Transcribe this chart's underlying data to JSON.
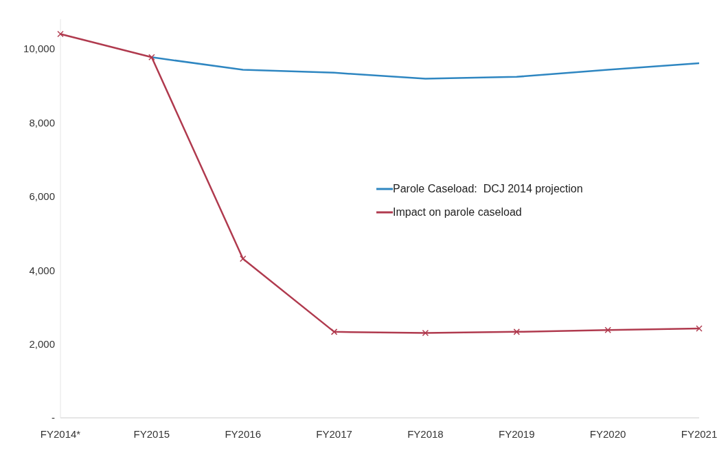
{
  "chart_data": {
    "type": "line",
    "categories": [
      "FY2014*",
      "FY2015",
      "FY2016",
      "FY2017",
      "FY2018",
      "FY2019",
      "FY2020",
      "FY2021"
    ],
    "series": [
      {
        "name": "Parole Caseload:  DCJ 2014 projection",
        "color": "#2e86c1",
        "marker": "none",
        "values": [
          null,
          9770,
          9430,
          9350,
          9190,
          9240,
          9430,
          9610
        ]
      },
      {
        "name": "Impact on parole caseload",
        "color": "#b03a4e",
        "marker": "cross",
        "values": [
          10400,
          9770,
          4310,
          2330,
          2300,
          2330,
          2380,
          2420
        ]
      }
    ],
    "ylim": [
      0,
      10800
    ],
    "yticks": [
      {
        "value": 0,
        "label": "-"
      },
      {
        "value": 2000,
        "label": "2,000"
      },
      {
        "value": 4000,
        "label": "4,000"
      },
      {
        "value": 6000,
        "label": "6,000"
      },
      {
        "value": 8000,
        "label": "8,000"
      },
      {
        "value": 10000,
        "label": "10,000"
      }
    ],
    "grid": false,
    "legend": "center",
    "line_style": "solid"
  }
}
